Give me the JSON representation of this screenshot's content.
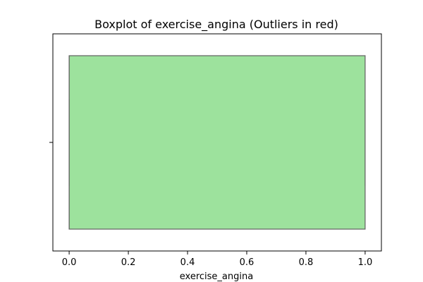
{
  "chart_data": {
    "type": "boxplot",
    "title": "Boxplot of exercise_angina (Outliers in red)",
    "xlabel": "exercise_angina",
    "ylabel": "",
    "xlim": [
      -0.055,
      1.055
    ],
    "x_ticks": [
      0.0,
      0.2,
      0.4,
      0.6,
      0.8,
      1.0
    ],
    "x_tick_labels": [
      "0.0",
      "0.2",
      "0.4",
      "0.6",
      "0.8",
      "1.0"
    ],
    "y_ticks": [
      0
    ],
    "y_tick_labels": [
      ""
    ],
    "orientation": "horizontal",
    "box": {
      "whisker_low": 0,
      "q1": 0,
      "median": 0,
      "q3": 1,
      "whisker_high": 1
    },
    "outliers": [],
    "colors": {
      "box_fill": "#9de29d",
      "box_edge": "#606060",
      "outlier": "#ff0000",
      "axis": "#000000"
    },
    "grid": false
  }
}
